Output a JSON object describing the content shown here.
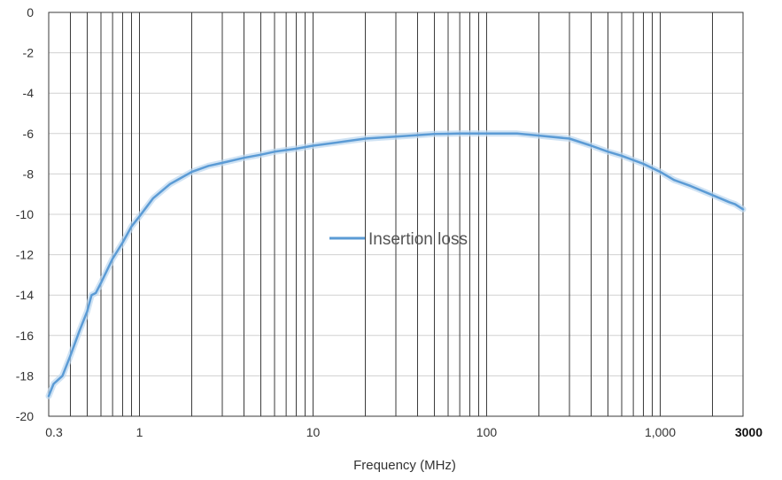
{
  "chart_data": {
    "type": "line",
    "xlabel": "Frequency (MHz)",
    "ylabel": "",
    "x_scale": "log",
    "xlim": [
      0.3,
      3000
    ],
    "ylim": [
      -20,
      0
    ],
    "grid": true,
    "legend": "center",
    "x_tick_labels": [
      {
        "value": 0.3,
        "label": "0.3"
      },
      {
        "value": 1,
        "label": "1"
      },
      {
        "value": 10,
        "label": "10"
      },
      {
        "value": 100,
        "label": "100"
      },
      {
        "value": 1000,
        "label": "1,000"
      },
      {
        "value": 3000,
        "label": "3000"
      }
    ],
    "y_ticks": [
      0,
      -2,
      -4,
      -6,
      -8,
      -10,
      -12,
      -14,
      -16,
      -18,
      -20
    ],
    "series": [
      {
        "name": "Insertion loss",
        "color": "#5b9bd5",
        "x": [
          0.3,
          0.32,
          0.36,
          0.4,
          0.45,
          0.5,
          0.53,
          0.56,
          0.6,
          0.7,
          0.8,
          0.9,
          1.0,
          1.2,
          1.5,
          2.0,
          2.5,
          3,
          4,
          5,
          6,
          8,
          10,
          15,
          20,
          30,
          40,
          50,
          70,
          100,
          150,
          200,
          300,
          400,
          500,
          600,
          800,
          1000,
          1200,
          1500,
          2000,
          2500,
          2700,
          3000
        ],
        "y": [
          -19.0,
          -18.4,
          -18.0,
          -17.0,
          -15.8,
          -14.8,
          -14.0,
          -13.9,
          -13.4,
          -12.2,
          -11.4,
          -10.6,
          -10.1,
          -9.2,
          -8.5,
          -7.9,
          -7.6,
          -7.45,
          -7.2,
          -7.05,
          -6.9,
          -6.75,
          -6.6,
          -6.4,
          -6.25,
          -6.15,
          -6.08,
          -6.02,
          -6.0,
          -6.0,
          -6.0,
          -6.1,
          -6.25,
          -6.6,
          -6.9,
          -7.1,
          -7.5,
          -7.9,
          -8.3,
          -8.6,
          -9.05,
          -9.4,
          -9.5,
          -9.75
        ]
      }
    ]
  }
}
